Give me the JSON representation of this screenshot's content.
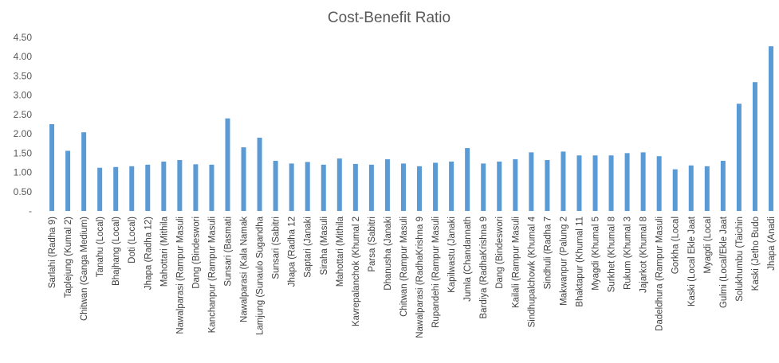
{
  "chart_data": {
    "type": "bar",
    "title": "Cost-Benefit Ratio",
    "xlabel": "",
    "ylabel": "",
    "ylim": [
      0,
      4.5
    ],
    "y_ticks": [
      "-",
      "0.50",
      "1.00",
      "1.50",
      "2.00",
      "2.50",
      "3.00",
      "3.50",
      "4.00",
      "4.50"
    ],
    "bar_color": "#5b9bd5",
    "grid": false,
    "legend": "none",
    "categories": [
      "Sarlahi (Radha 9)",
      "Taplejung (Kumal 2)",
      "Chitwan (Ganga Medium)",
      "Tanahu (Local)",
      "Bhajhang (Local)",
      "Doti (Local)",
      "Jhapa (Radha 12)",
      "Mahottari (Mithila",
      "Nawalparasi (Rampur Masuli",
      "Dang (Bindeswori",
      "Kanchanpur (Rampur Masuli",
      "Sunsari (Basmati",
      "Nawalparasi (Kala Namak",
      "Lamjung (Sunaulo Sugandha",
      "Sunsari (Sabitri",
      "Jhapa (Radha 12",
      "Saptari (Janaki",
      "Siraha (Masuli",
      "Mahottari (Mithila",
      "Kavrepalanchok (Khumal 2",
      "Parsa (Sabitri",
      "Dhanusha (Janaki",
      "Chitwan (Rampur Masuli",
      "Nawalparasi (RadhaKrishna 9",
      "Rupandehi (Rampur Masuli",
      "Kapilwastu (Janaki",
      "Jumla (Chandannath",
      "Bardiya (RadhaKrishna 9",
      "Dang (Bindeswori",
      "Kailali (Rampur Masuli",
      "Sindhupalchowk (Khumal 4",
      "Sindhuli (Radha 7",
      "Makwanpur (Palung 2",
      "Bhaktapur (Khumal 11",
      "Myagdi (Khumal 5",
      "Surkhet (Khumal 8",
      "Rukum (Khumal 3",
      "Jajarkot (Khumal 8",
      "Dadeldhura (Rampur Masuli",
      "Gorkha (Local",
      "Kaski (Local Ekle Jaat",
      "Myagdi (Local",
      "Gulmi (Local/Ekle Jaat",
      "Solukhumbu (Taichin",
      "Kaski (Jetho Budo",
      "Jhapa (Anadi"
    ],
    "values": [
      2.25,
      1.56,
      2.04,
      1.12,
      1.14,
      1.16,
      1.2,
      1.28,
      1.32,
      1.21,
      1.2,
      2.4,
      1.65,
      1.9,
      1.3,
      1.23,
      1.27,
      1.2,
      1.36,
      1.22,
      1.2,
      1.34,
      1.23,
      1.16,
      1.25,
      1.28,
      1.63,
      1.23,
      1.28,
      1.34,
      1.52,
      1.32,
      1.54,
      1.44,
      1.44,
      1.44,
      1.5,
      1.52,
      1.42,
      1.08,
      1.18,
      1.16,
      1.3,
      2.78,
      3.34,
      4.27
    ]
  }
}
